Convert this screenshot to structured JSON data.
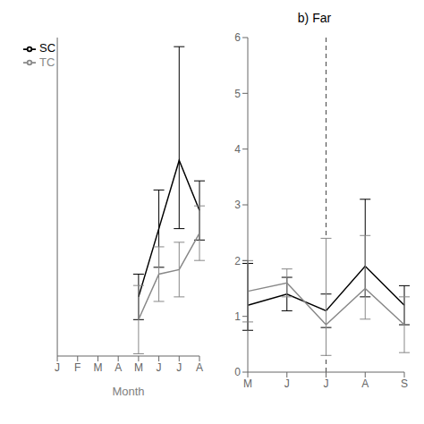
{
  "chart_data": [
    {
      "type": "line",
      "xlabel": "Month",
      "categories": [
        "J",
        "F",
        "M",
        "A",
        "M",
        "J",
        "J",
        "A"
      ],
      "series": [
        {
          "name": "SC",
          "color": "#000000",
          "values": [
            null,
            null,
            null,
            null,
            1.3,
            2.8,
            4.3,
            3.2
          ],
          "error_low": [
            null,
            null,
            null,
            null,
            0.5,
            0.85,
            1.5,
            0.65
          ],
          "error_high": [
            null,
            null,
            null,
            null,
            0.5,
            0.85,
            2.5,
            0.65
          ]
        },
        {
          "name": "TC",
          "color": "#888888",
          "values": [
            null,
            null,
            null,
            null,
            0.8,
            1.8,
            1.9,
            2.7
          ],
          "error_low": [
            null,
            null,
            null,
            null,
            0.75,
            0.6,
            0.6,
            0.6
          ],
          "error_high": [
            null,
            null,
            null,
            null,
            0.75,
            0.6,
            0.6,
            0.6
          ]
        }
      ],
      "ylim": [
        0,
        7
      ],
      "legend": "upper left",
      "tick_labels": "x"
    },
    {
      "type": "line",
      "title": "b) Far",
      "categories": [
        "M",
        "J",
        "J",
        "A",
        "S"
      ],
      "series": [
        {
          "color": "#000000",
          "values": [
            1.2,
            1.4,
            1.1,
            1.9,
            1.2
          ],
          "error_low": [
            0.45,
            0.3,
            0.3,
            0.55,
            0.35
          ],
          "error_high": [
            0.75,
            0.3,
            0.3,
            1.2,
            0.35
          ]
        },
        {
          "color": "#888888",
          "values": [
            1.45,
            1.6,
            0.85,
            1.5,
            0.85
          ],
          "error_low": [
            0.55,
            0.25,
            0.55,
            0.55,
            0.5
          ],
          "error_high": [
            0.55,
            0.25,
            1.55,
            0.95,
            0.5
          ]
        }
      ],
      "ylim": [
        0,
        6
      ],
      "yticks": [
        0,
        1,
        2,
        3,
        4,
        5,
        6
      ],
      "reference_lines": [
        {
          "x": 2,
          "color": "#444444",
          "line_style": "dashed"
        }
      ]
    }
  ]
}
